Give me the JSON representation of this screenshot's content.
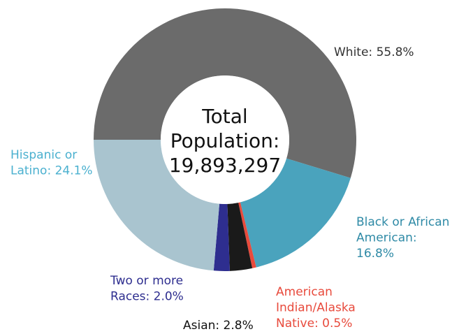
{
  "chart_data": {
    "type": "donut",
    "values": [
      55.8,
      16.8,
      0.5,
      2.8,
      2.0,
      24.1
    ],
    "value_labels": [
      [
        "White: 55.8%"
      ],
      [
        "Black or African",
        "American:",
        "16.8%"
      ],
      [
        "American",
        "Indian/Alaska",
        "Native: 0.5%"
      ],
      [
        "Asian: 2.8%"
      ],
      [
        "Two or more",
        "Races: 2.0%"
      ],
      [
        "Hispanic or",
        "Latino: 24.1%"
      ]
    ],
    "colors": [
      "#6b6b6b",
      "#4aa3bd",
      "#e84a3c",
      "#1a1a1a",
      "#2e2e8f",
      "#a9c4cf"
    ],
    "label_colors": [
      "#333333",
      "#2f8aa6",
      "#e84a3c",
      "#111111",
      "#2e2e8f",
      "#4ab0cf"
    ],
    "center_label": [
      "Total",
      "Population:",
      "19,893,297"
    ]
  }
}
